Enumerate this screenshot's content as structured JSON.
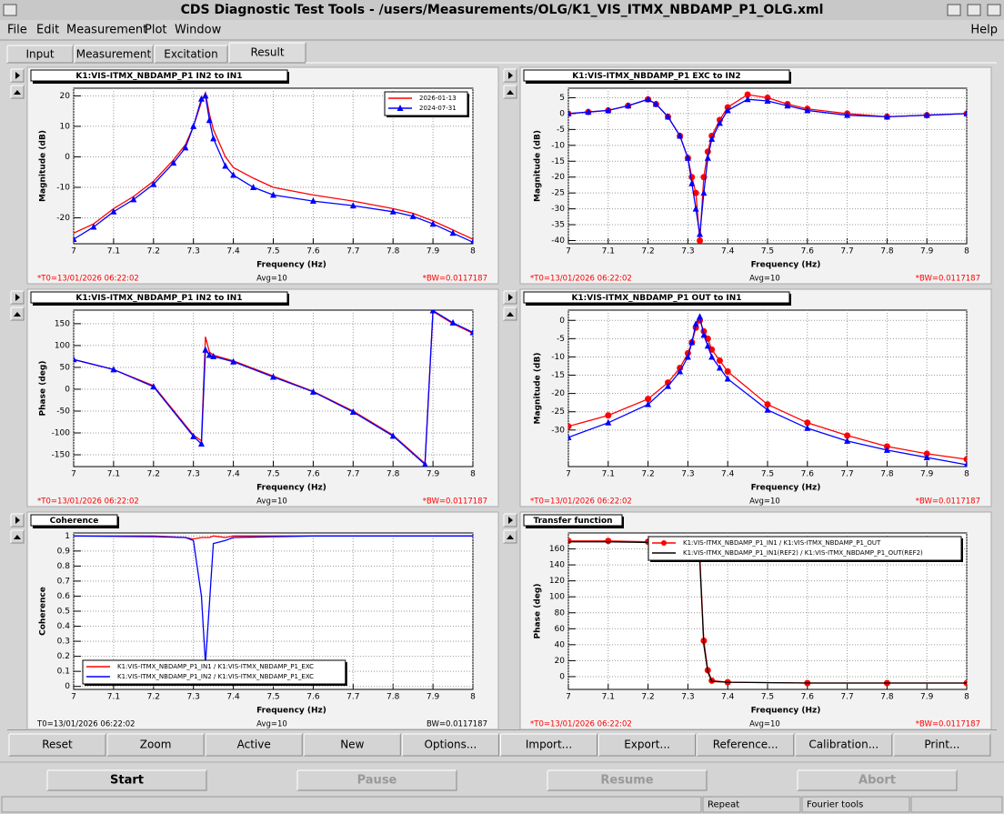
{
  "window": {
    "title": "CDS Diagnostic Test Tools - /users/Measurements/OLG/K1_VIS_ITMX_NBDAMP_P1_OLG.xml"
  },
  "menu": {
    "items": [
      "File",
      "Edit",
      "Measurement",
      "Plot",
      "Window"
    ],
    "help": "Help"
  },
  "tabs": {
    "items": [
      "Input",
      "Measurement",
      "Excitation",
      "Result"
    ],
    "active": 3
  },
  "buttons": [
    "Reset",
    "Zoom",
    "Active",
    "New",
    "Options...",
    "Import...",
    "Export...",
    "Reference...",
    "Calibration...",
    "Print..."
  ],
  "controls": [
    {
      "label": "Start",
      "enabled": true
    },
    {
      "label": "Pause",
      "enabled": false
    },
    {
      "label": "Resume",
      "enabled": false
    },
    {
      "label": "Abort",
      "enabled": false
    }
  ],
  "status": [
    "Repeat",
    "Fourier tools"
  ],
  "chart_data": [
    {
      "type": "line",
      "title": "K1:VIS-ITMX_NBDAMP_P1 IN2 to IN1",
      "xlabel": "Frequency (Hz)",
      "ylabel": "Magnitude (dB)",
      "x": [
        7,
        7.05,
        7.1,
        7.15,
        7.2,
        7.25,
        7.28,
        7.3,
        7.32,
        7.33,
        7.34,
        7.35,
        7.38,
        7.4,
        7.45,
        7.5,
        7.6,
        7.7,
        7.8,
        7.85,
        7.9,
        7.95,
        8
      ],
      "series": [
        {
          "name": "2026-01-13",
          "color": "#ff0000",
          "marker": "none",
          "values": [
            -25,
            -22,
            -17,
            -13,
            -8,
            -1,
            4,
            10,
            18,
            21,
            14,
            9,
            0,
            -3.5,
            -7,
            -10,
            -12.5,
            -14.5,
            -17,
            -18.5,
            -21,
            -24,
            -27
          ]
        },
        {
          "name": "2024-07-31",
          "color": "#0000ff",
          "marker": "triangle",
          "values": [
            -27,
            -23,
            -18,
            -14,
            -9,
            -2,
            3,
            10,
            19,
            20,
            12,
            6,
            -3,
            -6,
            -10,
            -12.5,
            -14.5,
            -16,
            -18,
            -19.5,
            -22,
            -25,
            -28
          ]
        }
      ],
      "xlim": [
        7,
        8
      ],
      "ylim": [
        -28.5,
        22.5
      ],
      "xticks": [
        7,
        7.1,
        7.2,
        7.3,
        7.4,
        7.5,
        7.6,
        7.7,
        7.8,
        7.9,
        8
      ],
      "yticks": [
        -20,
        -10,
        0,
        10,
        20
      ],
      "grid": true,
      "legend": "upper right",
      "footer": {
        "t0": "*T0=13/01/2026 06:22:02",
        "avg": "Avg=10",
        "bw": "*BW=0.0117187"
      },
      "footer_color": "#ff0000"
    },
    {
      "type": "line",
      "title": "K1:VIS-ITMX_NBDAMP_P1 EXC to IN2",
      "xlabel": "Frequency (Hz)",
      "ylabel": "Magnitude (dB)",
      "x": [
        7,
        7.05,
        7.1,
        7.15,
        7.2,
        7.22,
        7.25,
        7.28,
        7.3,
        7.31,
        7.32,
        7.33,
        7.34,
        7.35,
        7.36,
        7.38,
        7.4,
        7.45,
        7.5,
        7.55,
        7.6,
        7.7,
        7.8,
        7.9,
        8
      ],
      "series": [
        {
          "color": "#ff0000",
          "marker": "circle",
          "values": [
            0,
            0.5,
            1,
            2.5,
            4.5,
            3,
            -1,
            -7,
            -14,
            -20,
            -25,
            -40,
            -20,
            -12,
            -7,
            -2,
            2,
            6,
            5,
            3,
            1.5,
            0,
            -1,
            -0.5,
            0
          ]
        },
        {
          "color": "#0000ff",
          "marker": "triangle",
          "values": [
            0,
            0.5,
            1,
            2.5,
            4.5,
            3,
            -1,
            -7,
            -14,
            -22,
            -30,
            -38,
            -25,
            -14,
            -8,
            -3,
            1,
            4.5,
            4,
            2.5,
            1,
            -0.5,
            -1,
            -0.5,
            0
          ]
        }
      ],
      "xlim": [
        7,
        8
      ],
      "ylim": [
        -41,
        8
      ],
      "xticks": [
        7,
        7.1,
        7.2,
        7.3,
        7.4,
        7.5,
        7.6,
        7.7,
        7.8,
        7.9,
        8
      ],
      "yticks": [
        -40,
        -35,
        -30,
        -25,
        -20,
        -15,
        -10,
        -5,
        0,
        5
      ],
      "grid": true,
      "footer": {
        "t0": "*T0=13/01/2026 06:22:02",
        "avg": "Avg=10",
        "bw": "*BW=0.0117187"
      },
      "footer_color": "#ff0000"
    },
    {
      "type": "line",
      "title": "K1:VIS-ITMX_NBDAMP_P1 IN2 to IN1",
      "xlabel": "Frequency (Hz)",
      "ylabel": "Phase (deg)",
      "x": [
        7,
        7.1,
        7.2,
        7.3,
        7.32,
        7.33,
        7.34,
        7.35,
        7.4,
        7.5,
        7.6,
        7.7,
        7.8,
        7.88,
        7.9,
        7.95,
        8
      ],
      "series": [
        {
          "color": "#ff0000",
          "marker": "none",
          "values": [
            68,
            45,
            8,
            -105,
            -118,
            120,
            85,
            78,
            65,
            30,
            -5,
            -50,
            -105,
            -170,
            178,
            150,
            128
          ]
        },
        {
          "color": "#0000ff",
          "marker": "triangle",
          "values": [
            68,
            45,
            6,
            -108,
            -125,
            90,
            78,
            75,
            63,
            28,
            -6,
            -52,
            -107,
            -172,
            180,
            152,
            130
          ]
        }
      ],
      "xlim": [
        7,
        8
      ],
      "ylim": [
        -177,
        181
      ],
      "xticks": [
        7,
        7.1,
        7.2,
        7.3,
        7.4,
        7.5,
        7.6,
        7.7,
        7.8,
        7.9,
        8
      ],
      "yticks": [
        -150,
        -100,
        -50,
        0,
        50,
        100,
        150
      ],
      "grid": true,
      "footer": {
        "t0": "*T0=13/01/2026 06:22:02",
        "avg": "Avg=10",
        "bw": "*BW=0.0117187"
      },
      "footer_color": "#ff0000"
    },
    {
      "type": "line",
      "title": "K1:VIS-ITMX_NBDAMP_P1 OUT to IN1",
      "xlabel": "Frequency (Hz)",
      "ylabel": "Magnitude (dB)",
      "x": [
        7,
        7.1,
        7.2,
        7.25,
        7.28,
        7.3,
        7.31,
        7.32,
        7.33,
        7.34,
        7.35,
        7.36,
        7.38,
        7.4,
        7.5,
        7.6,
        7.7,
        7.8,
        7.9,
        8
      ],
      "series": [
        {
          "color": "#ff0000",
          "marker": "circle",
          "values": [
            -29,
            -26,
            -21.5,
            -17,
            -13,
            -9,
            -6,
            -2,
            0,
            -3,
            -5,
            -8,
            -11,
            -14,
            -23,
            -28,
            -31.5,
            -34.5,
            -36.5,
            -38
          ]
        },
        {
          "color": "#0000ff",
          "marker": "triangle",
          "values": [
            -32,
            -28,
            -23,
            -18,
            -14,
            -10,
            -6,
            -1,
            1,
            -4,
            -7,
            -10,
            -13,
            -16,
            -24.5,
            -29.5,
            -33,
            -35.5,
            -37.5,
            -39.5
          ]
        }
      ],
      "xlim": [
        7,
        8
      ],
      "ylim": [
        -40,
        2.8
      ],
      "xticks": [
        7,
        7.1,
        7.2,
        7.3,
        7.4,
        7.5,
        7.6,
        7.7,
        7.8,
        7.9,
        8
      ],
      "yticks": [
        -30,
        -25,
        -20,
        -15,
        -10,
        -5,
        0
      ],
      "grid": true,
      "footer": {
        "t0": "*T0=13/01/2026 06:22:02",
        "avg": "Avg=10",
        "bw": "*BW=0.0117187"
      },
      "footer_color": "#ff0000"
    },
    {
      "type": "line",
      "title": "Coherence",
      "xlabel": "Frequency (Hz)",
      "ylabel": "Coherence",
      "x": [
        7,
        7.2,
        7.28,
        7.3,
        7.32,
        7.33,
        7.34,
        7.35,
        7.38,
        7.4,
        7.6,
        8
      ],
      "series": [
        {
          "name": "K1:VIS-ITMX_NBDAMP_P1_IN1 / K1:VIS-ITMX_NBDAMP_P1_EXC",
          "color": "#ff0000",
          "marker": "none",
          "values": [
            1,
            1,
            0.99,
            0.98,
            0.99,
            0.99,
            0.99,
            1,
            0.99,
            1,
            1,
            1
          ]
        },
        {
          "name": "K1:VIS-ITMX_NBDAMP_P1_IN2 / K1:VIS-ITMX_NBDAMP_P1_EXC",
          "color": "#0000ff",
          "marker": "none",
          "values": [
            1,
            0.995,
            0.99,
            0.97,
            0.6,
            0.15,
            0.55,
            0.95,
            0.97,
            0.99,
            1,
            1
          ]
        }
      ],
      "xlim": [
        7,
        8
      ],
      "ylim": [
        -0.02,
        1.02
      ],
      "xticks": [
        7,
        7.1,
        7.2,
        7.3,
        7.4,
        7.5,
        7.6,
        7.7,
        7.8,
        7.9,
        8
      ],
      "yticks": [
        0,
        0.1,
        0.2,
        0.3,
        0.4,
        0.5,
        0.6,
        0.7,
        0.8,
        0.9,
        1
      ],
      "grid": true,
      "legend": "lower left",
      "footer": {
        "t0": "T0=13/01/2026 06:22:02",
        "avg": "Avg=10",
        "bw": "BW=0.0117187"
      },
      "footer_color": "#000000"
    },
    {
      "type": "line",
      "title": "Transfer function",
      "xlabel": "Frequency (Hz)",
      "ylabel": "Phase (deg)",
      "x": [
        7,
        7.1,
        7.2,
        7.3,
        7.32,
        7.33,
        7.34,
        7.35,
        7.36,
        7.4,
        7.6,
        7.8,
        8
      ],
      "series": [
        {
          "name": "K1:VIS-ITMX_NBDAMP_P1_IN1 / K1:VIS-ITMX_NBDAMP_P1_OUT",
          "color": "#ff0000",
          "marker": "circle",
          "values": [
            170,
            170,
            169,
            168,
            165,
            150,
            45,
            8,
            -5,
            -7,
            -8,
            -8,
            -8
          ]
        },
        {
          "name": "K1:VIS-ITMX_NBDAMP_P1_IN1(REF2) / K1:VIS-ITMX_NBDAMP_P1_OUT(REF2)",
          "color": "#000000",
          "marker": "none",
          "values": [
            169,
            169,
            168,
            167,
            163,
            145,
            40,
            6,
            -6,
            -7,
            -8,
            -8,
            -8
          ]
        }
      ],
      "xlim": [
        7,
        8
      ],
      "ylim": [
        -16,
        180
      ],
      "xticks": [
        7,
        7.1,
        7.2,
        7.3,
        7.4,
        7.5,
        7.6,
        7.7,
        7.8,
        7.9,
        8
      ],
      "yticks": [
        0,
        20,
        40,
        60,
        80,
        100,
        120,
        140,
        160
      ],
      "grid": true,
      "legend": "upper right",
      "footer": {
        "t0": "*T0=13/01/2026 06:22:02",
        "avg": "Avg=10",
        "bw": "*BW=0.0117187"
      },
      "footer_color": "#ff0000"
    }
  ]
}
